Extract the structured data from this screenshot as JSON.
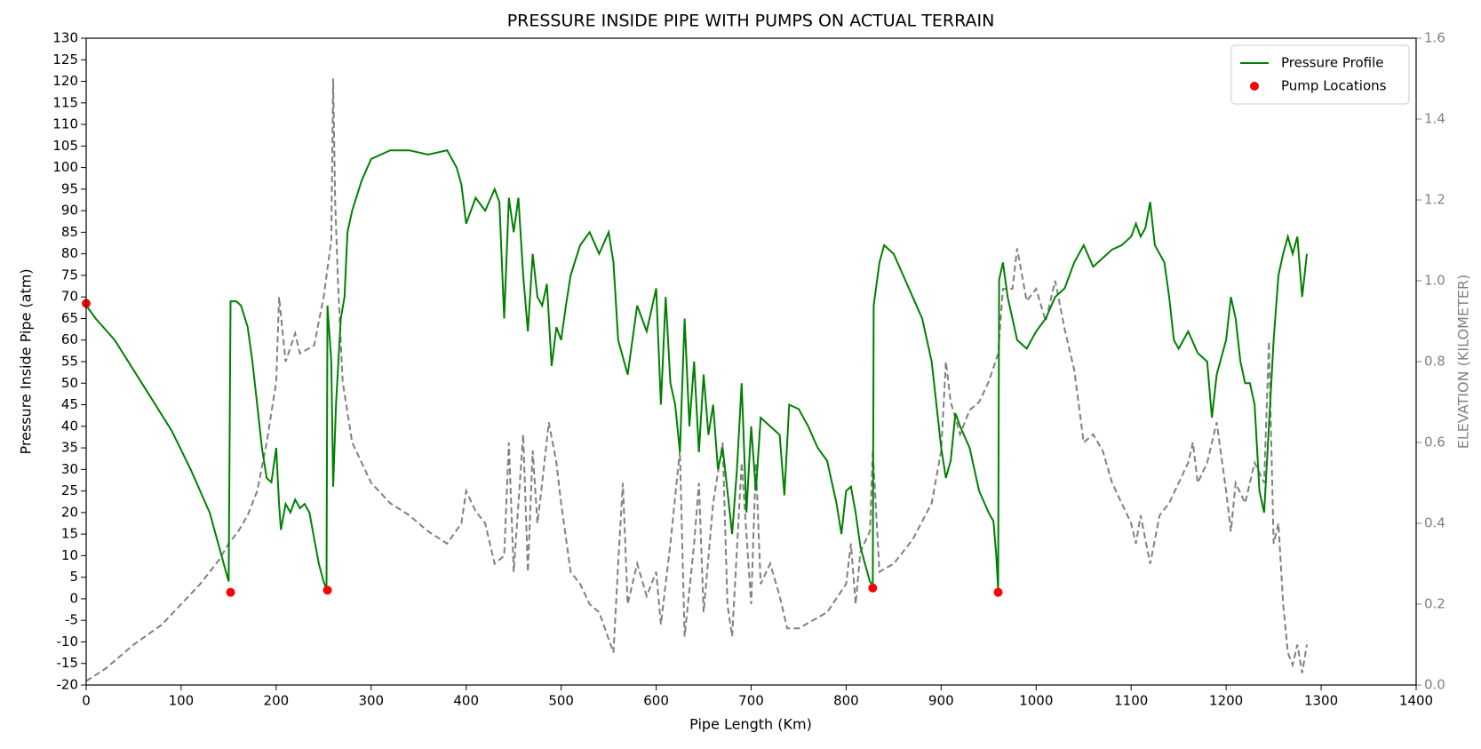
{
  "chart_data": {
    "type": "line",
    "title": "PRESSURE INSIDE PIPE WITH PUMPS ON ACTUAL TERRAIN",
    "xlabel": "Pipe Length (Km)",
    "ylabel": "Pressure Inside Pipe (atm)",
    "y2label": "ELEVATION (KILOMETER)",
    "xlim": [
      0,
      1400
    ],
    "xticks": [
      0,
      100,
      200,
      300,
      400,
      500,
      600,
      700,
      800,
      900,
      1000,
      1100,
      1200,
      1300,
      1400
    ],
    "ylim": [
      -20,
      130
    ],
    "yticks": [
      -20,
      -15,
      -10,
      -5,
      0,
      5,
      10,
      15,
      20,
      25,
      30,
      35,
      40,
      45,
      50,
      55,
      60,
      65,
      70,
      75,
      80,
      85,
      90,
      95,
      100,
      105,
      110,
      115,
      120,
      125,
      130
    ],
    "y2lim": [
      0,
      1.6
    ],
    "y2ticks": [
      {
        "value": 0,
        "label": "0.0"
      },
      0.2,
      0.4,
      0.6,
      0.8,
      {
        "value": 1,
        "label": "1.0"
      },
      1.2,
      1.4,
      1.6
    ],
    "legend": "upper right",
    "series": [
      {
        "name": "Pressure Profile",
        "color": "#008000",
        "type": "line",
        "x": [
          0,
          10,
          30,
          50,
          70,
          90,
          110,
          130,
          140,
          145,
          150,
          152,
          158,
          163,
          170,
          175,
          180,
          185,
          190,
          195,
          200,
          203,
          205,
          210,
          215,
          220,
          225,
          230,
          235,
          240,
          245,
          250,
          253,
          254,
          258,
          260,
          263,
          268,
          272,
          275,
          280,
          290,
          300,
          320,
          340,
          360,
          380,
          390,
          395,
          400,
          410,
          420,
          430,
          435,
          440,
          445,
          450,
          455,
          460,
          465,
          470,
          475,
          480,
          485,
          490,
          495,
          500,
          505,
          510,
          520,
          530,
          540,
          550,
          555,
          560,
          570,
          580,
          590,
          600,
          605,
          610,
          615,
          620,
          625,
          630,
          635,
          640,
          645,
          650,
          655,
          660,
          665,
          670,
          675,
          680,
          685,
          690,
          695,
          700,
          705,
          710,
          720,
          730,
          735,
          740,
          750,
          760,
          770,
          780,
          790,
          795,
          800,
          805,
          810,
          815,
          820,
          825,
          828,
          829,
          835,
          840,
          850,
          860,
          870,
          880,
          890,
          900,
          905,
          910,
          915,
          920,
          930,
          940,
          950,
          955,
          958,
          960,
          961,
          965,
          970,
          980,
          990,
          1000,
          1010,
          1020,
          1030,
          1040,
          1050,
          1060,
          1070,
          1080,
          1090,
          1100,
          1105,
          1110,
          1115,
          1120,
          1125,
          1135,
          1140,
          1145,
          1150,
          1160,
          1170,
          1180,
          1185,
          1190,
          1200,
          1205,
          1210,
          1215,
          1220,
          1225,
          1230,
          1235,
          1240,
          1245,
          1250,
          1255,
          1260,
          1265,
          1270,
          1275,
          1280,
          1285
        ],
        "values": [
          68,
          65,
          60,
          53,
          46,
          39,
          30,
          20,
          12,
          8,
          4,
          69,
          69,
          68,
          63,
          55,
          45,
          35,
          28,
          27,
          35,
          22,
          16,
          22,
          20,
          23,
          21,
          22,
          20,
          14,
          8,
          4,
          2,
          68,
          55,
          26,
          45,
          65,
          70,
          85,
          90,
          97,
          102,
          104,
          104,
          103,
          104,
          100,
          96,
          87,
          93,
          90,
          95,
          92,
          65,
          93,
          85,
          93,
          75,
          62,
          80,
          70,
          68,
          73,
          54,
          63,
          60,
          68,
          75,
          82,
          85,
          80,
          85,
          78,
          60,
          52,
          68,
          62,
          72,
          45,
          70,
          50,
          45,
          34,
          65,
          40,
          55,
          34,
          52,
          38,
          45,
          30,
          35,
          25,
          15,
          30,
          50,
          20,
          40,
          25,
          42,
          40,
          38,
          24,
          45,
          44,
          40,
          35,
          32,
          22,
          15,
          25,
          26,
          20,
          12,
          8,
          4,
          3,
          68,
          78,
          82,
          80,
          75,
          70,
          65,
          55,
          35,
          28,
          32,
          43,
          40,
          35,
          25,
          20,
          18,
          10,
          2,
          74,
          78,
          70,
          60,
          58,
          62,
          65,
          70,
          72,
          78,
          82,
          77,
          79,
          81,
          82,
          84,
          87,
          84,
          86,
          92,
          82,
          78,
          70,
          60,
          58,
          62,
          57,
          55,
          42,
          52,
          60,
          70,
          65,
          55,
          50,
          50,
          45,
          25,
          20,
          40,
          60,
          75,
          80,
          84,
          80,
          84,
          70,
          80
        ]
      },
      {
        "name": "Pump Locations",
        "color": "#ff0000",
        "type": "scatter",
        "x": [
          0,
          152,
          254,
          828,
          960
        ],
        "values": [
          68.5,
          1.5,
          2,
          2.5,
          1.5
        ]
      },
      {
        "color": "#808080",
        "type": "line",
        "axis": "y2",
        "linestyle": "dashed",
        "x": [
          0,
          20,
          50,
          80,
          100,
          120,
          140,
          150,
          160,
          170,
          180,
          190,
          200,
          203,
          210,
          220,
          225,
          240,
          250,
          258,
          260,
          262,
          265,
          270,
          280,
          300,
          320,
          340,
          360,
          380,
          395,
          400,
          410,
          420,
          430,
          440,
          445,
          450,
          460,
          465,
          470,
          475,
          480,
          487,
          495,
          500,
          510,
          520,
          530,
          540,
          555,
          560,
          565,
          570,
          580,
          590,
          600,
          605,
          615,
          625,
          630,
          640,
          645,
          650,
          660,
          670,
          675,
          680,
          690,
          700,
          705,
          710,
          720,
          730,
          738,
          750,
          780,
          800,
          805,
          810,
          815,
          825,
          828,
          835,
          850,
          870,
          890,
          900,
          905,
          910,
          920,
          930,
          940,
          950,
          960,
          965,
          975,
          980,
          990,
          1000,
          1010,
          1020,
          1030,
          1040,
          1050,
          1060,
          1070,
          1080,
          1090,
          1100,
          1105,
          1110,
          1120,
          1130,
          1140,
          1150,
          1160,
          1165,
          1170,
          1180,
          1190,
          1200,
          1205,
          1210,
          1220,
          1230,
          1240,
          1245,
          1250,
          1255,
          1260,
          1265,
          1270,
          1275,
          1280,
          1285
        ],
        "values": [
          0.01,
          0.04,
          0.1,
          0.15,
          0.2,
          0.25,
          0.31,
          0.35,
          0.38,
          0.42,
          0.48,
          0.6,
          0.75,
          0.96,
          0.8,
          0.87,
          0.82,
          0.84,
          0.96,
          1.1,
          1.5,
          1.2,
          1.0,
          0.75,
          0.6,
          0.5,
          0.45,
          0.42,
          0.38,
          0.35,
          0.4,
          0.48,
          0.43,
          0.4,
          0.3,
          0.32,
          0.6,
          0.28,
          0.62,
          0.28,
          0.58,
          0.4,
          0.5,
          0.65,
          0.55,
          0.45,
          0.28,
          0.25,
          0.2,
          0.18,
          0.08,
          0.3,
          0.5,
          0.2,
          0.3,
          0.22,
          0.28,
          0.15,
          0.35,
          0.58,
          0.12,
          0.35,
          0.5,
          0.18,
          0.45,
          0.6,
          0.2,
          0.12,
          0.55,
          0.2,
          0.55,
          0.25,
          0.3,
          0.22,
          0.14,
          0.14,
          0.18,
          0.25,
          0.35,
          0.2,
          0.33,
          0.38,
          0.58,
          0.28,
          0.3,
          0.36,
          0.45,
          0.58,
          0.8,
          0.7,
          0.62,
          0.68,
          0.7,
          0.75,
          0.82,
          0.98,
          0.98,
          1.08,
          0.95,
          0.98,
          0.9,
          1.0,
          0.88,
          0.78,
          0.6,
          0.62,
          0.58,
          0.5,
          0.45,
          0.4,
          0.35,
          0.42,
          0.3,
          0.42,
          0.45,
          0.5,
          0.55,
          0.6,
          0.5,
          0.55,
          0.65,
          0.48,
          0.38,
          0.5,
          0.45,
          0.55,
          0.5,
          0.85,
          0.35,
          0.4,
          0.2,
          0.08,
          0.05,
          0.1,
          0.03,
          0.1
        ]
      }
    ]
  }
}
